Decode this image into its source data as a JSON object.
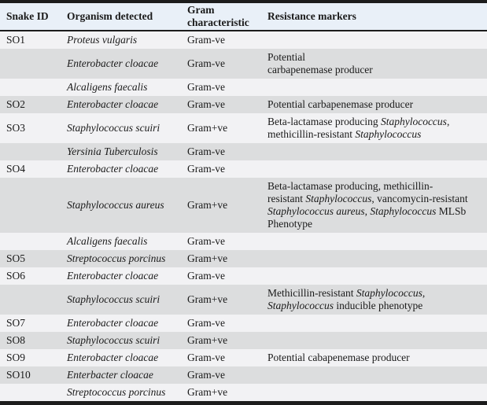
{
  "colors": {
    "header_bg": "#e9f0f8",
    "row_light": "#f2f2f4",
    "row_dark": "#dcddde",
    "rule": "#1c1c1c",
    "text": "#1a1a1a"
  },
  "table": {
    "header": {
      "snake_id": "Snake ID",
      "organism": "Organism detected",
      "gram": "Gram\ncharacteristic",
      "resistance": "Resistance markers"
    },
    "rows": [
      {
        "snake_id": "SO1",
        "organism": "Proteus vulgaris",
        "gram": "Gram-ve",
        "resistance": [],
        "shade": "light"
      },
      {
        "snake_id": "",
        "organism": "Enterobacter cloacae",
        "gram": "Gram-ve",
        "resistance": [
          {
            "text": "Potential\ncarbapenemase producer",
            "italic": false
          }
        ],
        "shade": "dark"
      },
      {
        "snake_id": "",
        "organism": "Alcaligens faecalis",
        "gram": "Gram-ve",
        "resistance": [],
        "shade": "light"
      },
      {
        "snake_id": "SO2",
        "organism": "Enterobacter cloacae",
        "gram": "Gram-ve",
        "resistance": [
          {
            "text": "Potential carbapenemase producer",
            "italic": false
          }
        ],
        "shade": "dark"
      },
      {
        "snake_id": "SO3",
        "organism": "Staphylococcus scuiri",
        "gram": "Gram+ve",
        "resistance": [
          {
            "text": "Beta-lactamase producing ",
            "italic": false
          },
          {
            "text": "Staphylococcus",
            "italic": true
          },
          {
            "text": ",\nmethicillin-resistant ",
            "italic": false
          },
          {
            "text": "Staphylococcus",
            "italic": true
          }
        ],
        "shade": "light"
      },
      {
        "snake_id": "",
        "organism": "Yersinia Tuberculosis",
        "gram": "Gram-ve",
        "resistance": [],
        "shade": "dark"
      },
      {
        "snake_id": "SO4",
        "organism": "Enterobacter cloacae",
        "gram": "Gram-ve",
        "resistance": [],
        "shade": "light"
      },
      {
        "snake_id": "",
        "organism": "Staphylococcus aureus",
        "gram": "Gram+ve",
        "resistance": [
          {
            "text": "Beta-lactamase producing, methicillin-\nresistant ",
            "italic": false
          },
          {
            "text": "Staphylococcus",
            "italic": true
          },
          {
            "text": ", vancomycin-resistant\n",
            "italic": false
          },
          {
            "text": "Staphylococcus aureus",
            "italic": true
          },
          {
            "text": ", ",
            "italic": false
          },
          {
            "text": "Staphylococcus",
            "italic": true
          },
          {
            "text": " MLSb\nPhenotype",
            "italic": false
          }
        ],
        "shade": "dark"
      },
      {
        "snake_id": "",
        "organism": "Alcaligens faecalis",
        "gram": "Gram-ve",
        "resistance": [],
        "shade": "light"
      },
      {
        "snake_id": "SO5",
        "organism": "Streptococcus porcinus",
        "gram": "Gram+ve",
        "resistance": [],
        "shade": "dark"
      },
      {
        "snake_id": "SO6",
        "organism": "Enterobacter cloacae",
        "gram": "Gram-ve",
        "resistance": [],
        "shade": "light"
      },
      {
        "snake_id": "",
        "organism": "Staphylococcus scuiri",
        "gram": "Gram+ve",
        "resistance": [
          {
            "text": "Methicillin-resistant ",
            "italic": false
          },
          {
            "text": "Staphylococcus",
            "italic": true
          },
          {
            "text": ",\n",
            "italic": false
          },
          {
            "text": "Staphylococcus",
            "italic": true
          },
          {
            "text": " inducible phenotype",
            "italic": false
          }
        ],
        "shade": "dark"
      },
      {
        "snake_id": "SO7",
        "organism": "Enterobacter cloacae",
        "gram": "Gram-ve",
        "resistance": [],
        "shade": "light"
      },
      {
        "snake_id": "SO8",
        "organism": "Staphylococcus scuiri",
        "gram": "Gram+ve",
        "resistance": [],
        "shade": "dark"
      },
      {
        "snake_id": "SO9",
        "organism": "Enterobacter cloacae",
        "gram": "Gram-ve",
        "resistance": [
          {
            "text": "Potential cabapenemase producer",
            "italic": false
          }
        ],
        "shade": "light"
      },
      {
        "snake_id": "SO10",
        "organism": "Enterbacter cloacae",
        "gram": "Gram-ve",
        "resistance": [],
        "shade": "dark"
      },
      {
        "snake_id": "",
        "organism": "Streptococcus porcinus",
        "gram": "Gram+ve",
        "resistance": [],
        "shade": "light"
      }
    ]
  }
}
